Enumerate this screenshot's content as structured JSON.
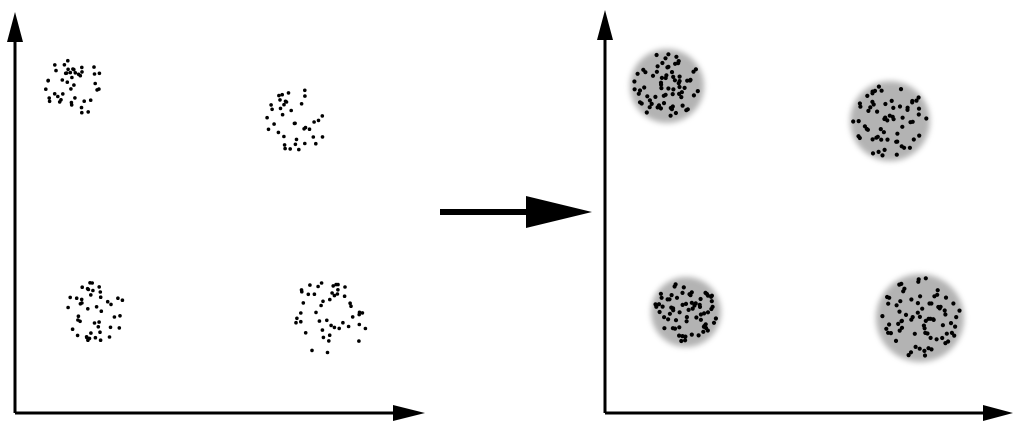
{
  "diagram": {
    "left_panel": {
      "clusters": [
        {
          "id": "top-left",
          "points": 44,
          "halo": false
        },
        {
          "id": "top-right",
          "points": 38,
          "halo": false
        },
        {
          "id": "bottom-left",
          "points": 44,
          "halo": false
        },
        {
          "id": "bottom-right",
          "points": 48,
          "halo": false
        }
      ]
    },
    "right_panel": {
      "clusters": [
        {
          "id": "top-left",
          "points": 70,
          "halo": true
        },
        {
          "id": "top-right",
          "points": 64,
          "halo": true
        },
        {
          "id": "bottom-left",
          "points": 70,
          "halo": true
        },
        {
          "id": "bottom-right",
          "points": 76,
          "halo": true
        }
      ]
    },
    "colors": {
      "ink": "#000000",
      "halo": "#9a9a9a",
      "background": "#ffffff"
    }
  }
}
